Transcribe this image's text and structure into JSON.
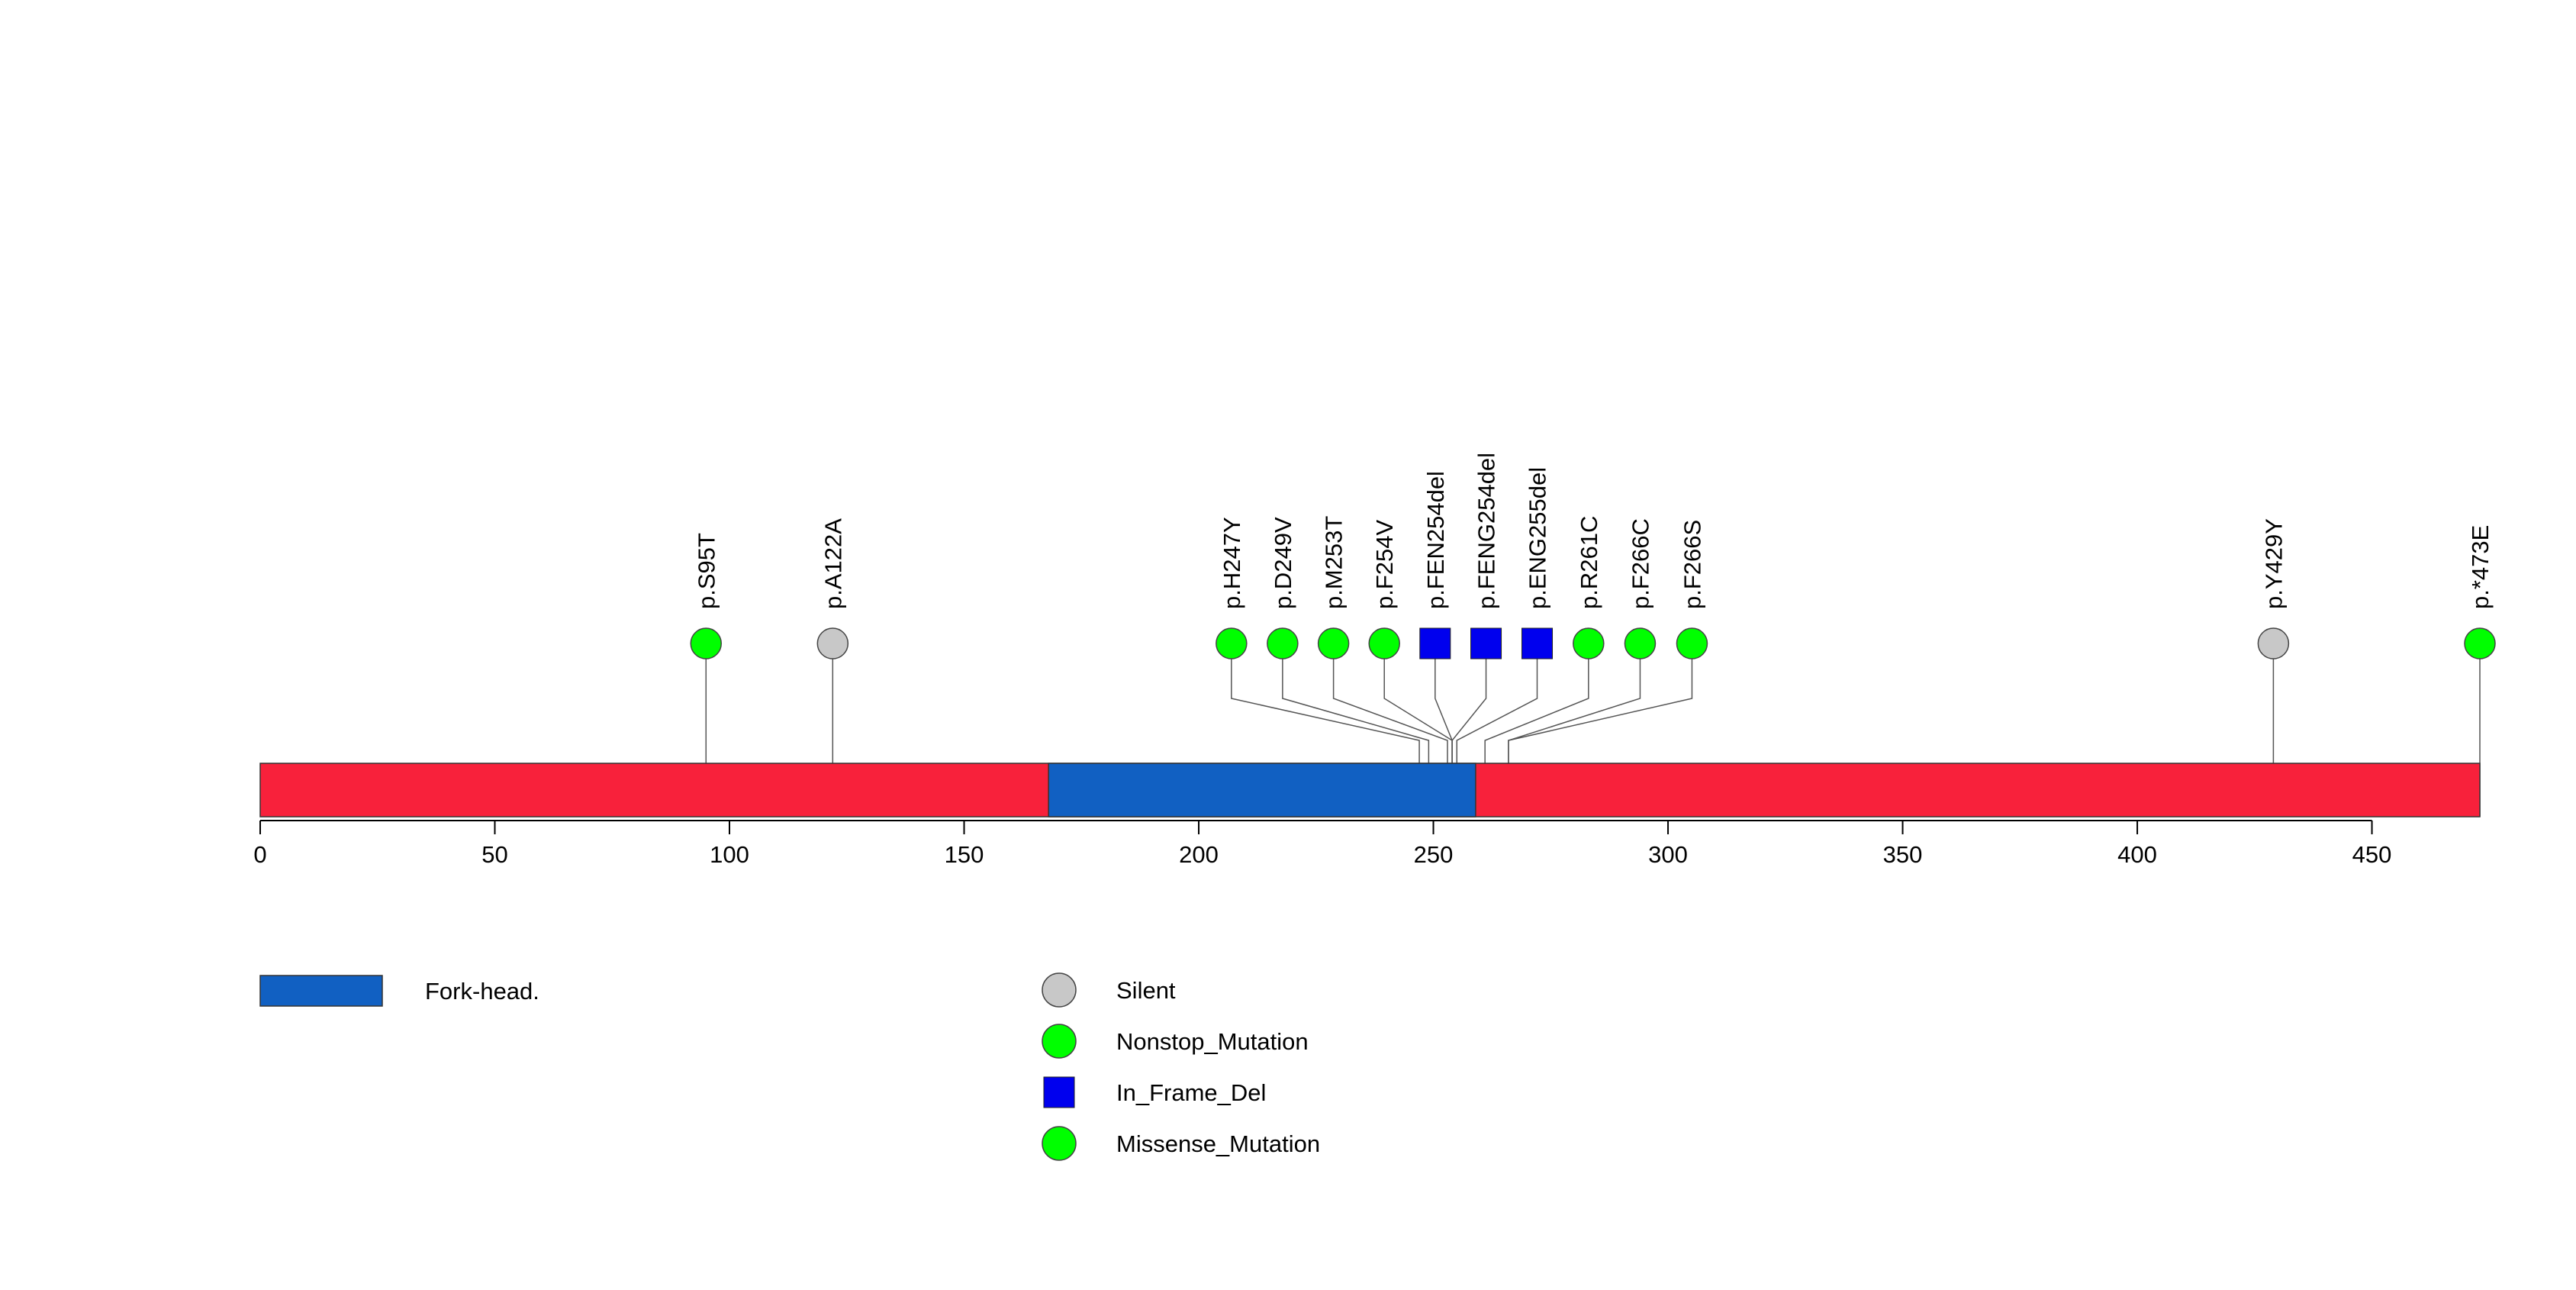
{
  "chart_data": {
    "type": "lollipop",
    "protein_length": 473,
    "axis": {
      "ticks": [
        0,
        50,
        100,
        150,
        200,
        250,
        300,
        350,
        400,
        450
      ],
      "tick_labels": [
        "0",
        "50",
        "100",
        "150",
        "200",
        "250",
        "300",
        "350",
        "400",
        "450"
      ]
    },
    "colors": {
      "backbone": "#f8213b",
      "domain": "#1160c2",
      "silent": "#c8c8c8",
      "nonstop": "#00ff00",
      "in_frame_del": "#0000ee",
      "missense": "#00ff00"
    },
    "domains": [
      {
        "name": "Fork-head.",
        "start": 168,
        "end": 259,
        "color": "#1160c2"
      }
    ],
    "mutations": [
      {
        "label": "p.S95T",
        "position": 95,
        "type": "Missense_Mutation"
      },
      {
        "label": "p.A122A",
        "position": 122,
        "type": "Silent"
      },
      {
        "label": "p.H247Y",
        "position": 247,
        "type": "Missense_Mutation"
      },
      {
        "label": "p.D249V",
        "position": 249,
        "type": "Missense_Mutation"
      },
      {
        "label": "p.M253T",
        "position": 253,
        "type": "Missense_Mutation"
      },
      {
        "label": "p.F254V",
        "position": 254,
        "type": "Missense_Mutation"
      },
      {
        "label": "p.FEN254del",
        "position": 254,
        "type": "In_Frame_Del"
      },
      {
        "label": "p.FENG254del",
        "position": 254,
        "type": "In_Frame_Del"
      },
      {
        "label": "p.ENG255del",
        "position": 255,
        "type": "In_Frame_Del"
      },
      {
        "label": "p.R261C",
        "position": 261,
        "type": "Missense_Mutation"
      },
      {
        "label": "p.F266C",
        "position": 266,
        "type": "Missense_Mutation"
      },
      {
        "label": "p.F266S",
        "position": 266,
        "type": "Missense_Mutation"
      },
      {
        "label": "p.Y429Y",
        "position": 429,
        "type": "Silent"
      },
      {
        "label": "p.*473E",
        "position": 473,
        "type": "Nonstop_Mutation"
      }
    ],
    "legend": {
      "domains": [
        {
          "label": "Fork-head.",
          "color": "#1160c2"
        }
      ],
      "mutation_types": [
        {
          "label": "Silent",
          "shape": "circle",
          "color": "#c8c8c8"
        },
        {
          "label": "Nonstop_Mutation",
          "shape": "circle",
          "color": "#00ff00"
        },
        {
          "label": "In_Frame_Del",
          "shape": "square",
          "color": "#0000ee"
        },
        {
          "label": "Missense_Mutation",
          "shape": "circle",
          "color": "#00ff00"
        }
      ]
    }
  }
}
